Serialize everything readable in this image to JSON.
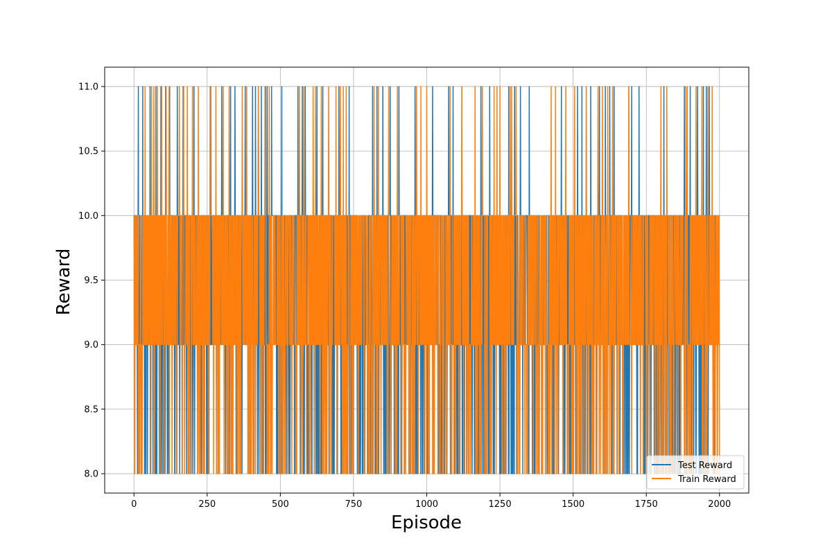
{
  "chart_data": {
    "type": "line",
    "xlabel": "Episode",
    "ylabel": "Reward",
    "xlim": [
      -100,
      2100
    ],
    "ylim": [
      7.85,
      11.15
    ],
    "x_ticks": [
      0,
      250,
      500,
      750,
      1000,
      1250,
      1500,
      1750,
      2000
    ],
    "x_tick_labels": [
      "0",
      "250",
      "500",
      "750",
      "1000",
      "1250",
      "1500",
      "1750",
      "2000"
    ],
    "y_ticks": [
      8.0,
      8.5,
      9.0,
      9.5,
      10.0,
      10.5,
      11.0
    ],
    "y_tick_labels": [
      "8.0",
      "8.5",
      "9.0",
      "9.5",
      "10.0",
      "10.5",
      "11.0"
    ],
    "grid": true,
    "legend_position": "bottom-right",
    "series": [
      {
        "name": "Test Reward",
        "color": "#1f77b4",
        "x_range": [
          0,
          2000
        ],
        "episodes": 2000,
        "distinct_values": [
          8,
          9,
          10,
          11
        ],
        "spikes_to_11_at": [
          15,
          30,
          55,
          75,
          92,
          108,
          122,
          148,
          168,
          205,
          262,
          300,
          330,
          345,
          380,
          405,
          415,
          425,
          435,
          448,
          455,
          470,
          505,
          560,
          575,
          585,
          625,
          645,
          700,
          735,
          815,
          830,
          850,
          875,
          905,
          960,
          1020,
          1075,
          1090,
          1120,
          1185,
          1215,
          1280,
          1300,
          1320,
          1350,
          1460,
          1515,
          1530,
          1560,
          1590,
          1610,
          1625,
          1640,
          1690,
          1700,
          1725,
          1810,
          1880,
          1900,
          1925,
          1945,
          1955,
          1965
        ]
      },
      {
        "name": "Train Reward",
        "color": "#ff7f0e",
        "x_range": [
          0,
          2000
        ],
        "episodes": 2000,
        "distinct_values": [
          8,
          9,
          10,
          11
        ],
        "spikes_to_11_at": [
          38,
          60,
          68,
          80,
          95,
          110,
          120,
          155,
          170,
          182,
          200,
          220,
          260,
          280,
          305,
          325,
          370,
          385,
          425,
          450,
          462,
          565,
          580,
          612,
          620,
          640,
          665,
          690,
          705,
          715,
          725,
          820,
          835,
          870,
          900,
          965,
          980,
          1000,
          1080,
          1120,
          1165,
          1190,
          1230,
          1240,
          1250,
          1285,
          1290,
          1305,
          1425,
          1440,
          1475,
          1505,
          1545,
          1585,
          1600,
          1618,
          1635,
          1690,
          1800,
          1820,
          1885,
          1890,
          1920,
          1940,
          1960,
          1975
        ]
      }
    ]
  }
}
